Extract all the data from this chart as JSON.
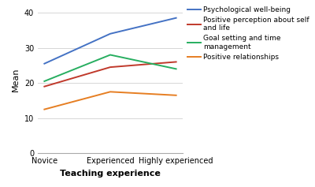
{
  "x_labels": [
    "Novice",
    "Experienced",
    "Highly experienced"
  ],
  "series": [
    {
      "label": "Psychological well-being",
      "color": "#4472c4",
      "values": [
        25.5,
        34.0,
        38.5
      ]
    },
    {
      "label": "Positive perception about self\nand life",
      "color": "#c0392b",
      "values": [
        19.0,
        24.5,
        26.0
      ]
    },
    {
      "label": "Goal setting and time\nmanagement",
      "color": "#27ae60",
      "values": [
        20.5,
        28.0,
        24.0
      ]
    },
    {
      "label": "Positive relationships",
      "color": "#e67e22",
      "values": [
        12.5,
        17.5,
        16.5
      ]
    }
  ],
  "xlabel": "Teaching experience",
  "ylabel": "Mean",
  "ylim": [
    0,
    42
  ],
  "yticks": [
    0,
    10,
    20,
    30,
    40
  ],
  "axis_label_fontsize": 8,
  "legend_fontsize": 6.5,
  "tick_fontsize": 7,
  "background_color": "#ffffff",
  "grid_color": "#d0d0d0",
  "spine_color": "#aaaaaa"
}
